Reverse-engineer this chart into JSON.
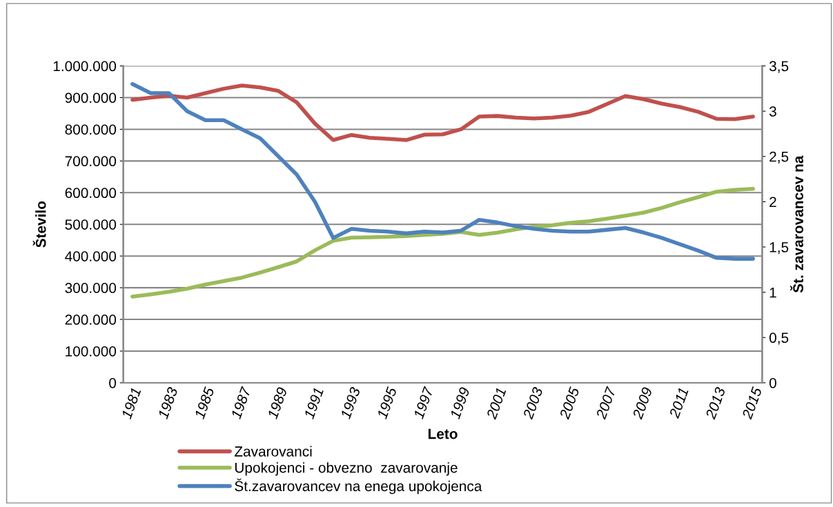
{
  "chart_data": {
    "type": "line",
    "xlabel": "Leto",
    "ylabel": "Število",
    "y2label": "Št. zavarovancev na",
    "categories": [
      "1981",
      null,
      "1983",
      null,
      "1985",
      null,
      "1987",
      null,
      "1989",
      null,
      "1991",
      null,
      "1993",
      null,
      "1995",
      null,
      "1997",
      null,
      "1999",
      null,
      "2001",
      null,
      "2003",
      null,
      "2005",
      null,
      "2007",
      null,
      "2009",
      null,
      "2011",
      null,
      "2013",
      null,
      "2015"
    ],
    "series": [
      {
        "name": "Zavarovanci",
        "color": "#c0504d",
        "values": [
          893000,
          900000,
          906000,
          900000,
          914000,
          928000,
          938000,
          932000,
          921000,
          885000,
          818000,
          766000,
          782000,
          773000,
          770000,
          766000,
          783000,
          784000,
          800000,
          840000,
          842000,
          837000,
          834000,
          837000,
          843000,
          855000,
          880000,
          905000,
          895000,
          881000,
          870000,
          855000,
          833000,
          832000,
          840000
        ]
      },
      {
        "name": "Upokojenci - obvezno  zavarovanje",
        "color": "#9bbb59",
        "values": [
          272000,
          279000,
          287000,
          297000,
          310000,
          321000,
          332000,
          348000,
          365000,
          383000,
          418000,
          448000,
          458000,
          459000,
          461000,
          463000,
          467000,
          470000,
          476000,
          467000,
          474000,
          484000,
          493000,
          497000,
          505000,
          510000,
          518000,
          527000,
          537000,
          552000,
          570000,
          586000,
          603000,
          609000,
          612000
        ]
      },
      {
        "name": "Št.zavarovancev na enega upokojenca",
        "color": "#4f81bd",
        "axis": "y2",
        "values": [
          3.3,
          3.2,
          3.2,
          3.0,
          2.9,
          2.9,
          2.8,
          2.7,
          2.5,
          2.3,
          2.0,
          1.6,
          1.7,
          1.68,
          1.67,
          1.65,
          1.67,
          1.66,
          1.68,
          1.8,
          1.77,
          1.73,
          1.7,
          1.68,
          1.67,
          1.67,
          1.69,
          1.71,
          1.66,
          1.6,
          1.53,
          1.46,
          1.38,
          1.37,
          1.37
        ]
      }
    ],
    "ylim": [
      0,
      1000000
    ],
    "yticks": [
      0,
      {
        "value": 100000,
        "label": "100.000"
      },
      {
        "value": 200000,
        "label": "200.000"
      },
      {
        "value": 300000,
        "label": "300.000"
      },
      {
        "value": 400000,
        "label": "400.000"
      },
      {
        "value": 500000,
        "label": "500.000"
      },
      {
        "value": 600000,
        "label": "600.000"
      },
      {
        "value": 700000,
        "label": "700.000"
      },
      {
        "value": 800000,
        "label": "800.000"
      },
      {
        "value": 900000,
        "label": "900.000"
      },
      {
        "value": 1000000,
        "label": "1.000.000"
      }
    ],
    "y2lim": [
      0,
      3.5
    ],
    "y2ticks": [
      0,
      {
        "value": 0.5,
        "label": "0,5"
      },
      1,
      {
        "value": 1.5,
        "label": "1,5"
      },
      2,
      {
        "value": 2.5,
        "label": "2,5"
      },
      3,
      {
        "value": 3.5,
        "label": "3,5"
      }
    ],
    "grid": "y",
    "legend": "bottom",
    "marker": "none",
    "line_style": "solid"
  }
}
